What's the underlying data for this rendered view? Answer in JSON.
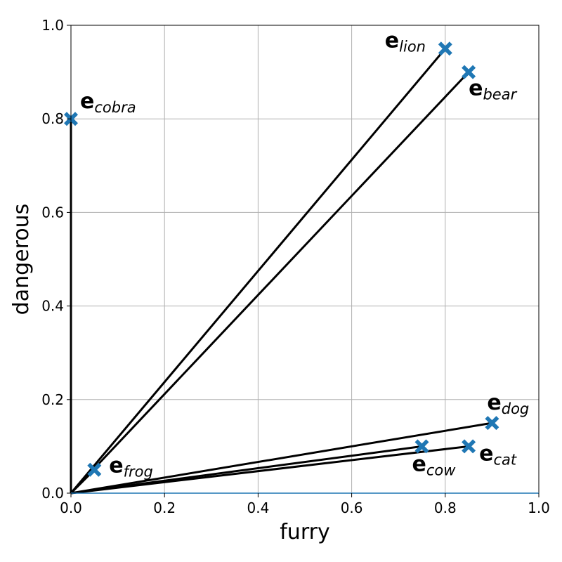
{
  "chart_data": {
    "type": "scatter",
    "xlabel": "furry",
    "ylabel": "dangerous",
    "xlim": [
      0.0,
      1.0
    ],
    "ylim": [
      0.0,
      1.0
    ],
    "xticks": [
      "0.0",
      "0.2",
      "0.4",
      "0.6",
      "0.8",
      "1.0"
    ],
    "yticks": [
      "0.0",
      "0.2",
      "0.4",
      "0.6",
      "0.8",
      "1.0"
    ],
    "grid": true,
    "marker": "X",
    "marker_color": "#1f77b4",
    "arrow_color": "#000000",
    "arrows_from": [
      0.0,
      0.0
    ],
    "points": [
      {
        "id": "lion",
        "label_main": "e",
        "label_sub": "lion",
        "x": 0.8,
        "y": 0.95
      },
      {
        "id": "bear",
        "label_main": "e",
        "label_sub": "bear",
        "x": 0.85,
        "y": 0.9
      },
      {
        "id": "cobra",
        "label_main": "e",
        "label_sub": "cobra",
        "x": 0.0,
        "y": 0.8
      },
      {
        "id": "frog",
        "label_main": "e",
        "label_sub": "frog",
        "x": 0.05,
        "y": 0.05
      },
      {
        "id": "dog",
        "label_main": "e",
        "label_sub": "dog",
        "x": 0.9,
        "y": 0.15
      },
      {
        "id": "cow",
        "label_main": "e",
        "label_sub": "cow",
        "x": 0.75,
        "y": 0.1
      },
      {
        "id": "cat",
        "label_main": "e",
        "label_sub": "cat",
        "x": 0.85,
        "y": 0.1
      }
    ]
  }
}
